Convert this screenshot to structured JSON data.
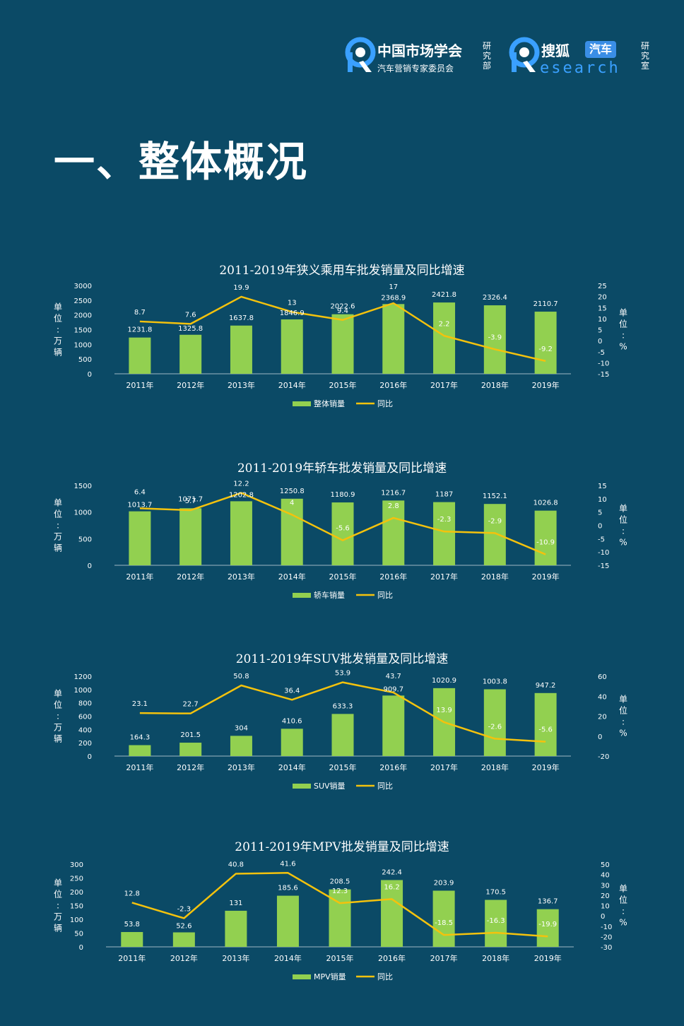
{
  "header": {
    "org1_name": "中国市场学会",
    "org1_sub": "汽车营销专家委员会",
    "org1_tag": [
      "研",
      "究",
      "部"
    ],
    "org2_name": "搜狐",
    "org2_badge": "汽车",
    "org2_research": "esearch",
    "org2_tag": [
      "研",
      "究",
      "室"
    ]
  },
  "page_title": "一、整体概况",
  "colors": {
    "bar": "#92d050",
    "line": "#f4c20d",
    "bg": "#0b4a66",
    "text": "#ffffff"
  },
  "chart_data": [
    {
      "type": "bar",
      "title": "2011-2019年狭义乘用车批发销量及同比增速",
      "categories": [
        "2011年",
        "2012年",
        "2013年",
        "2014年",
        "2015年",
        "2016年",
        "2017年",
        "2018年",
        "2019年"
      ],
      "series": [
        {
          "name": "整体销量",
          "type": "bar",
          "values": [
            1231.8,
            1325.8,
            1637.8,
            1846.9,
            2022.6,
            2368.9,
            2421.8,
            2326.4,
            2110.7
          ]
        },
        {
          "name": "同比",
          "type": "line",
          "values": [
            8.7,
            7.6,
            19.9,
            13,
            9.4,
            17,
            2.2,
            -3.9,
            -9.2
          ]
        }
      ],
      "y_left": {
        "min": 0,
        "max": 3000,
        "ticks": [
          "0",
          "500",
          "1000",
          "1500",
          "2000",
          "2500",
          "3000"
        ]
      },
      "y_right": {
        "min": -15,
        "max": 25,
        "ticks": [
          "-15",
          "-10",
          "-5",
          "0",
          "5",
          "10",
          "15",
          "20",
          "25"
        ]
      },
      "ylabel_left": [
        "单",
        "位",
        ":",
        "万",
        "辆"
      ],
      "ylabel_right": [
        "单",
        "位",
        ":",
        "%"
      ],
      "legend": [
        "整体销量",
        "同比"
      ]
    },
    {
      "type": "bar",
      "title": "2011-2019年轿车批发销量及同比增速",
      "categories": [
        "2011年",
        "2012年",
        "2013年",
        "2014年",
        "2015年",
        "2016年",
        "2017年",
        "2018年",
        "2019年"
      ],
      "series": [
        {
          "name": "轿车销量",
          "type": "bar",
          "values": [
            1013.7,
            1071.7,
            1202.8,
            1250.8,
            1180.9,
            1216.7,
            1187,
            1152.1,
            1026.8
          ]
        },
        {
          "name": "同比",
          "type": "line",
          "values": [
            6.4,
            5.7,
            12.2,
            4,
            -5.6,
            2.8,
            -2.3,
            -2.9,
            -10.9
          ]
        }
      ],
      "y_left": {
        "min": 0,
        "max": 1500,
        "ticks": [
          "0",
          "500",
          "1000",
          "1500"
        ]
      },
      "y_right": {
        "min": -15,
        "max": 15,
        "ticks": [
          "-15",
          "-10",
          "-5",
          "0",
          "5",
          "10",
          "15"
        ]
      },
      "ylabel_left": [
        "单",
        "位",
        ":",
        "万",
        "辆"
      ],
      "ylabel_right": [
        "单",
        "位",
        ":",
        "%"
      ],
      "legend": [
        "轿车销量",
        "同比"
      ]
    },
    {
      "type": "bar",
      "title": "2011-2019年SUV批发销量及同比增速",
      "categories": [
        "2011年",
        "2012年",
        "2013年",
        "2014年",
        "2015年",
        "2016年",
        "2017年",
        "2018年",
        "2019年"
      ],
      "series": [
        {
          "name": "SUV销量",
          "type": "bar",
          "values": [
            164.3,
            201.5,
            304,
            410.6,
            633.3,
            909.7,
            1020.9,
            1003.8,
            947.2
          ]
        },
        {
          "name": "同比",
          "type": "line",
          "values": [
            23.1,
            22.7,
            50.8,
            36.4,
            53.9,
            43.7,
            13.9,
            -2.6,
            -5.6
          ]
        }
      ],
      "y_left": {
        "min": 0,
        "max": 1200,
        "ticks": [
          "0",
          "200",
          "400",
          "600",
          "800",
          "1000",
          "1200"
        ]
      },
      "y_right": {
        "min": -20,
        "max": 60,
        "ticks": [
          "-20",
          "0",
          "20",
          "40",
          "60"
        ]
      },
      "ylabel_left": [
        "单",
        "位",
        ":",
        "万",
        "辆"
      ],
      "ylabel_right": [
        "单",
        "位",
        ":",
        "%"
      ],
      "legend": [
        "SUV销量",
        "同比"
      ]
    },
    {
      "type": "bar",
      "title": "2011-2019年MPV批发销量及同比增速",
      "categories": [
        "2011年",
        "2012年",
        "2013年",
        "2014年",
        "2015年",
        "2016年",
        "2017年",
        "2018年",
        "2019年"
      ],
      "series": [
        {
          "name": "MPV销量",
          "type": "bar",
          "values": [
            53.8,
            52.6,
            131,
            185.6,
            208.5,
            242.4,
            203.9,
            170.5,
            136.7
          ]
        },
        {
          "name": "同比",
          "type": "line",
          "values": [
            12.8,
            -2.3,
            40.8,
            41.6,
            12.3,
            16.2,
            -18.5,
            -16.3,
            -19.9
          ]
        }
      ],
      "y_left": {
        "min": 0,
        "max": 300,
        "ticks": [
          "0",
          "50",
          "100",
          "150",
          "200",
          "250",
          "300"
        ]
      },
      "y_right": {
        "min": -30,
        "max": 50,
        "ticks": [
          "-30",
          "-20",
          "-10",
          "0",
          "10",
          "20",
          "30",
          "40",
          "50"
        ]
      },
      "ylabel_left": [
        "单",
        "位",
        ":",
        "万",
        "辆"
      ],
      "ylabel_right": [
        "单",
        "位",
        ":",
        "%"
      ],
      "legend": [
        "MPV销量",
        "同比"
      ]
    }
  ]
}
